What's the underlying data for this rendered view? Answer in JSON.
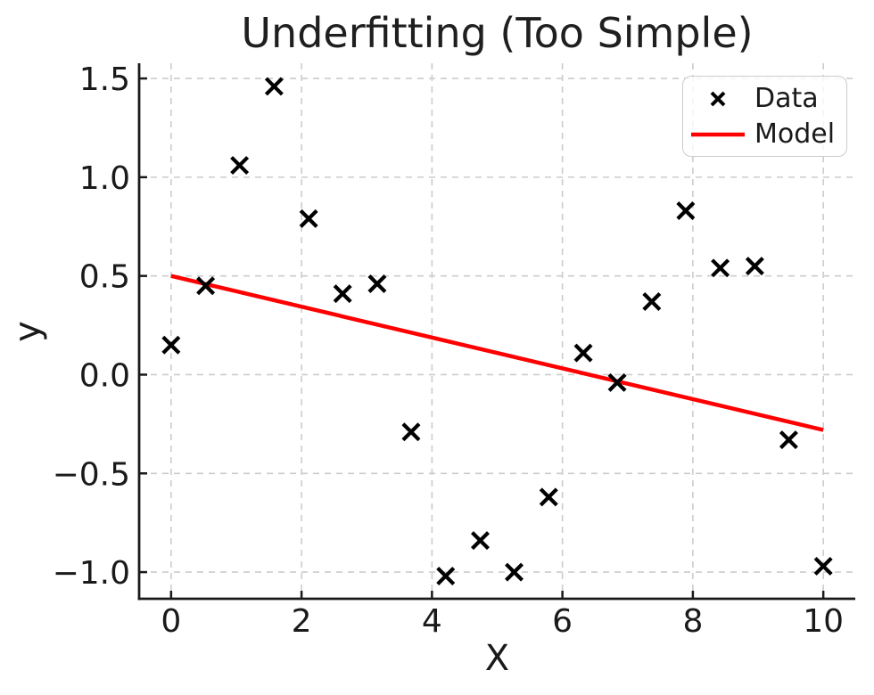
{
  "figure": {
    "background": "#ffffff"
  },
  "chart_data": {
    "type": "scatter",
    "title": "Underfitting (Too Simple)",
    "xlabel": "X",
    "ylabel": "y",
    "xlim": [
      -0.49,
      10.49
    ],
    "ylim": [
      -1.135,
      1.577
    ],
    "xticks": [
      0,
      2,
      4,
      6,
      8,
      10
    ],
    "yticks": [
      -1.0,
      -0.5,
      0.0,
      0.5,
      1.0,
      1.5
    ],
    "xtick_labels": [
      "0",
      "2",
      "4",
      "6",
      "8",
      "10"
    ],
    "ytick_labels": [
      "−1.0",
      "−0.5",
      "0.0",
      "0.5",
      "1.0",
      "1.5"
    ],
    "grid": true,
    "grid_style": "dashed",
    "legend": {
      "position": "upper right"
    },
    "series": [
      {
        "name": "Data",
        "type": "scatter",
        "marker": "x",
        "color": "#000000",
        "x": [
          0.0,
          0.53,
          1.05,
          1.58,
          2.11,
          2.63,
          3.16,
          3.68,
          4.21,
          4.74,
          5.26,
          5.79,
          6.32,
          6.84,
          7.37,
          7.89,
          8.42,
          8.95,
          9.47,
          10.0
        ],
        "y": [
          0.15,
          0.45,
          1.06,
          1.46,
          0.79,
          0.41,
          0.46,
          -0.29,
          -1.02,
          -0.84,
          -1.0,
          -0.62,
          0.11,
          -0.04,
          0.37,
          0.83,
          0.54,
          0.55,
          -0.33,
          -0.97
        ]
      },
      {
        "name": "Model",
        "type": "line",
        "color": "#ff0000",
        "x": [
          0.0,
          10.0
        ],
        "y": [
          0.5,
          -0.28
        ]
      }
    ]
  },
  "colors": {
    "text": "#1a1a1a",
    "spine": "#1a1a1a",
    "grid": "#cccccc",
    "model_red": "#ff0000",
    "marker_black": "#000000",
    "legend_border": "#cccccc"
  }
}
